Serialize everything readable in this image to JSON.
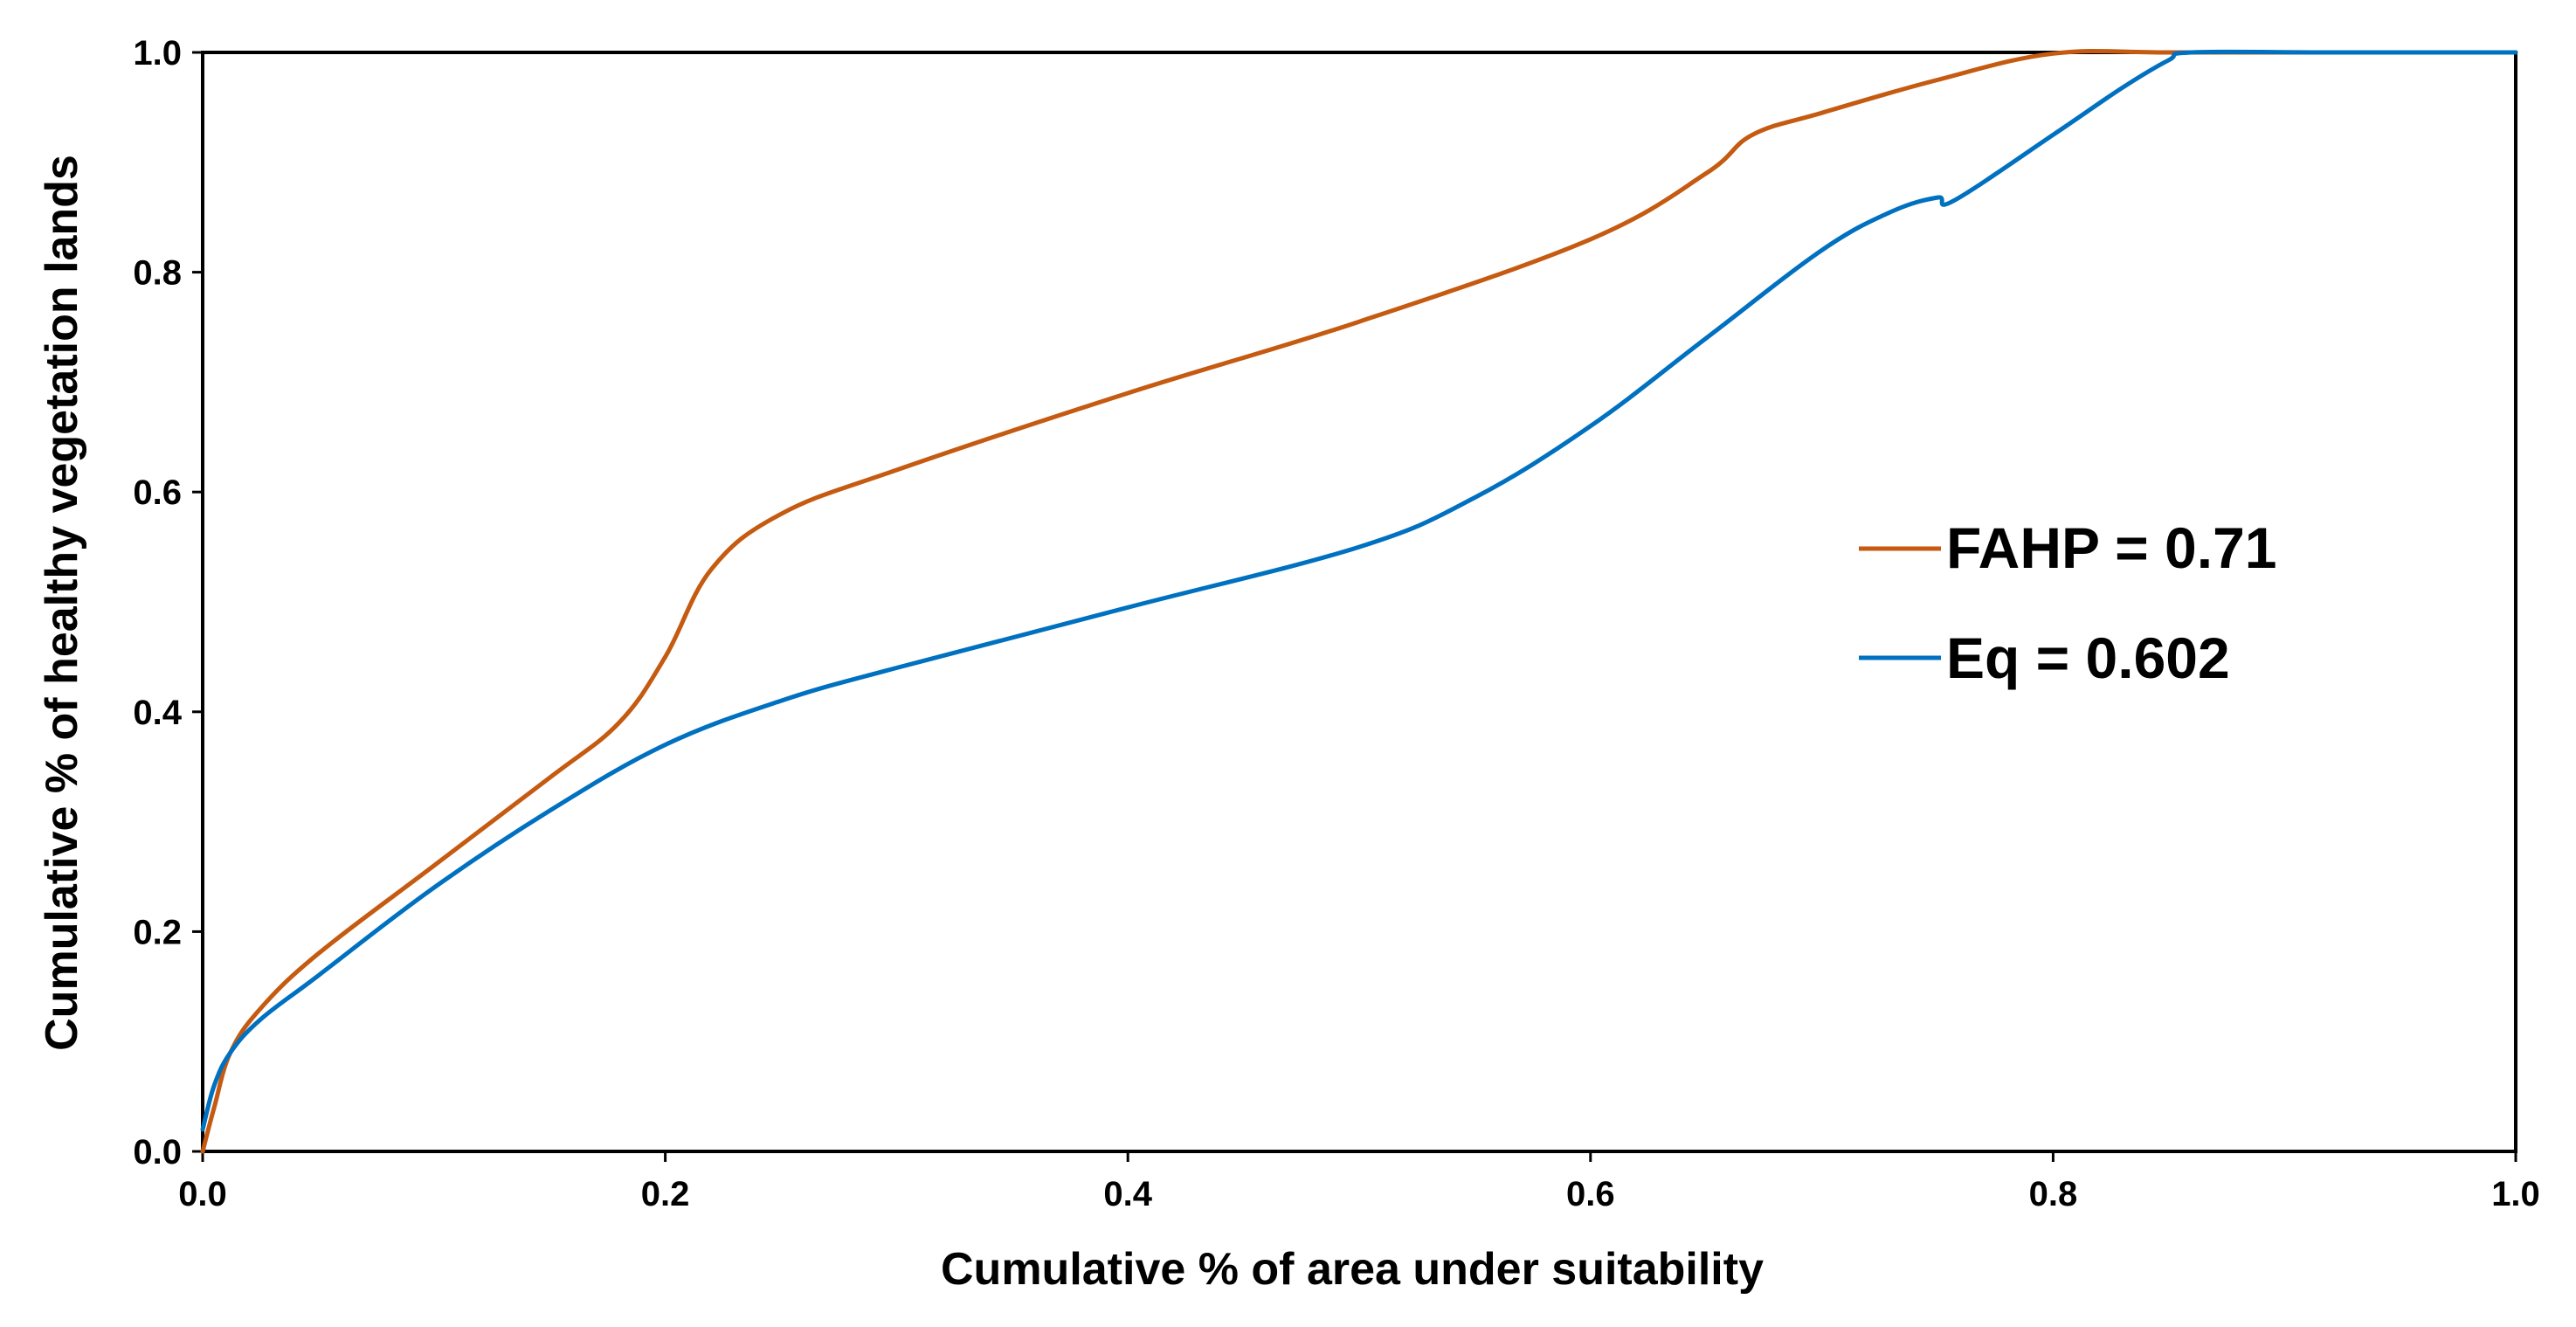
{
  "chart_data": {
    "type": "line",
    "title": "",
    "xlabel": "Cumulative % of area under suitability",
    "ylabel": "Cumulative % of healthy vegetation lands",
    "xlim": [
      0,
      1
    ],
    "ylim": [
      0,
      1
    ],
    "xticks": [
      "0.0",
      "0.2",
      "0.4",
      "0.6",
      "0.8",
      "1.0"
    ],
    "yticks": [
      "0.0",
      "0.2",
      "0.4",
      "0.6",
      "0.8",
      "1.0"
    ],
    "grid": false,
    "legend_position": "right",
    "series": [
      {
        "name": "FAHP = 0.71",
        "color": "#C55A11",
        "x": [
          0,
          0.005,
          0.012,
          0.025,
          0.05,
          0.1,
          0.15,
          0.18,
          0.2,
          0.22,
          0.25,
          0.3,
          0.4,
          0.5,
          0.6,
          0.65,
          0.67,
          0.7,
          0.75,
          0.8,
          0.85,
          0.92,
          1.0
        ],
        "y": [
          0,
          0.04,
          0.09,
          0.13,
          0.18,
          0.26,
          0.34,
          0.39,
          0.45,
          0.53,
          0.58,
          0.62,
          0.69,
          0.755,
          0.83,
          0.89,
          0.925,
          0.945,
          0.975,
          0.999,
          1.0,
          1.0,
          1.0
        ]
      },
      {
        "name": "Eq = 0.602",
        "color": "#0070C0",
        "x": [
          0,
          0.005,
          0.012,
          0.025,
          0.05,
          0.1,
          0.15,
          0.2,
          0.25,
          0.3,
          0.4,
          0.5,
          0.55,
          0.6,
          0.65,
          0.7,
          0.73,
          0.75,
          0.757,
          0.8,
          0.83,
          0.85,
          0.86,
          0.92,
          1.0
        ],
        "y": [
          0.02,
          0.06,
          0.09,
          0.12,
          0.16,
          0.24,
          0.31,
          0.37,
          0.41,
          0.44,
          0.495,
          0.55,
          0.595,
          0.66,
          0.74,
          0.82,
          0.855,
          0.868,
          0.865,
          0.925,
          0.968,
          0.993,
          1.0,
          1.0,
          1.0
        ]
      }
    ]
  }
}
